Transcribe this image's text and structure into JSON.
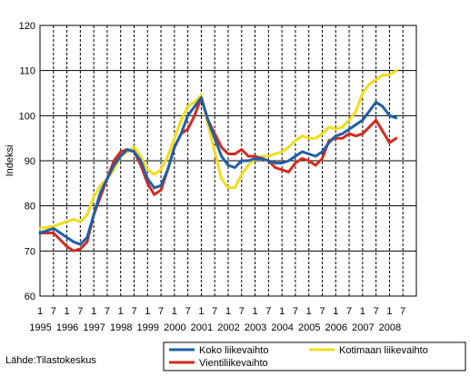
{
  "chart_data": {
    "type": "line",
    "ylabel": "Indeksi",
    "ylim": [
      60,
      120
    ],
    "yticks": [
      60,
      70,
      80,
      90,
      100,
      110,
      120
    ],
    "x_tick_labels": [
      "1",
      "7",
      "1",
      "7",
      "1",
      "7",
      "1",
      "7",
      "1",
      "7",
      "1",
      "7",
      "1",
      "7",
      "1",
      "7",
      "1",
      "7",
      "1",
      "7",
      "1",
      "7",
      "1",
      "7",
      "1",
      "7",
      "1",
      "7"
    ],
    "x_year_labels": [
      "1995",
      "1996",
      "1997",
      "1998",
      "1999",
      "2000",
      "2001",
      "2002",
      "2003",
      "2004",
      "2005",
      "2006",
      "2007",
      "2008"
    ],
    "grid": true,
    "legend_position": "bottom",
    "series": [
      {
        "name": "Koko liikevaihto",
        "color": "#1f5fa8",
        "x": [
          1995.0,
          1995.5,
          1996.0,
          1996.25,
          1996.5,
          1996.75,
          1997.0,
          1997.25,
          1997.5,
          1997.75,
          1998.0,
          1998.25,
          1998.5,
          1998.75,
          1999.0,
          1999.25,
          1999.5,
          1999.75,
          2000.0,
          2000.25,
          2000.5,
          2000.75,
          2001.0,
          2001.25,
          2001.5,
          2001.75,
          2002.0,
          2002.25,
          2002.5,
          2002.75,
          2003.0,
          2003.25,
          2003.5,
          2003.75,
          2004.0,
          2004.25,
          2004.5,
          2004.75,
          2005.0,
          2005.25,
          2005.5,
          2005.75,
          2006.0,
          2006.25,
          2006.5,
          2006.75,
          2007.0,
          2007.25,
          2007.5,
          2007.75,
          2008.0,
          2008.25
        ],
        "values": [
          74,
          75,
          73,
          72,
          71.5,
          73,
          78,
          83,
          86,
          89,
          91,
          92.5,
          92,
          90,
          86,
          84,
          84.5,
          88,
          93,
          96,
          100,
          102,
          104,
          99,
          95,
          91,
          89,
          88.5,
          90,
          90,
          90.5,
          90.5,
          90,
          89.5,
          89.5,
          90,
          91,
          92,
          91.5,
          91,
          92,
          94,
          95.5,
          96,
          97,
          98,
          99,
          101,
          103,
          102,
          100,
          99.5
        ]
      },
      {
        "name": "Kotimaan liikevaihto",
        "color": "#f2dc1a",
        "x": [
          1995.0,
          1995.5,
          1996.0,
          1996.25,
          1996.5,
          1996.75,
          1997.0,
          1997.25,
          1997.5,
          1997.75,
          1998.0,
          1998.25,
          1998.5,
          1998.75,
          1999.0,
          1999.25,
          1999.5,
          1999.75,
          2000.0,
          2000.25,
          2000.5,
          2000.75,
          2001.0,
          2001.25,
          2001.5,
          2001.75,
          2002.0,
          2002.25,
          2002.5,
          2002.75,
          2003.0,
          2003.25,
          2003.5,
          2003.75,
          2004.0,
          2004.25,
          2004.5,
          2004.75,
          2005.0,
          2005.25,
          2005.5,
          2005.75,
          2006.0,
          2006.25,
          2006.5,
          2006.75,
          2007.0,
          2007.25,
          2007.5,
          2007.75,
          2008.0,
          2008.25
        ],
        "values": [
          75,
          75.5,
          76.5,
          77,
          76.5,
          78,
          82,
          84.5,
          86,
          88,
          91,
          92,
          93,
          91,
          88,
          87,
          88,
          91,
          95,
          99,
          102,
          103,
          104.5,
          98,
          92,
          86,
          84,
          84,
          87,
          89,
          90.5,
          91,
          91,
          91.5,
          92,
          93,
          94.5,
          95.5,
          95,
          95,
          96,
          97.5,
          97,
          97.5,
          99,
          101,
          105,
          107,
          108,
          109,
          109,
          110
        ]
      },
      {
        "name": "Vientiliikevaihto",
        "color": "#d42a1e",
        "x": [
          1995.0,
          1995.5,
          1996.0,
          1996.25,
          1996.5,
          1996.75,
          1997.0,
          1997.25,
          1997.5,
          1997.75,
          1998.0,
          1998.25,
          1998.5,
          1998.75,
          1999.0,
          1999.25,
          1999.5,
          1999.75,
          2000.0,
          2000.25,
          2000.5,
          2000.75,
          2001.0,
          2001.25,
          2001.5,
          2001.75,
          2002.0,
          2002.25,
          2002.5,
          2002.75,
          2003.0,
          2003.25,
          2003.5,
          2003.75,
          2004.0,
          2004.25,
          2004.5,
          2004.75,
          2005.0,
          2005.25,
          2005.5,
          2005.75,
          2006.0,
          2006.25,
          2006.5,
          2006.75,
          2007.0,
          2007.25,
          2007.5,
          2007.75,
          2008.0,
          2008.25
        ],
        "values": [
          74,
          74,
          71,
          70,
          70.5,
          72,
          78,
          82,
          86,
          90,
          92,
          92.5,
          92,
          89,
          85,
          82.5,
          83.5,
          88,
          93,
          96,
          97,
          100,
          104,
          99,
          96,
          93,
          91.5,
          91.5,
          92.5,
          91,
          91,
          90.5,
          90,
          88.5,
          88,
          87.5,
          89.5,
          90.5,
          90,
          89,
          90.5,
          94.5,
          95,
          95,
          96,
          95.5,
          96,
          97.5,
          99,
          96.5,
          94,
          95
        ]
      }
    ],
    "source": "Lähde:Tilastokeskus"
  }
}
